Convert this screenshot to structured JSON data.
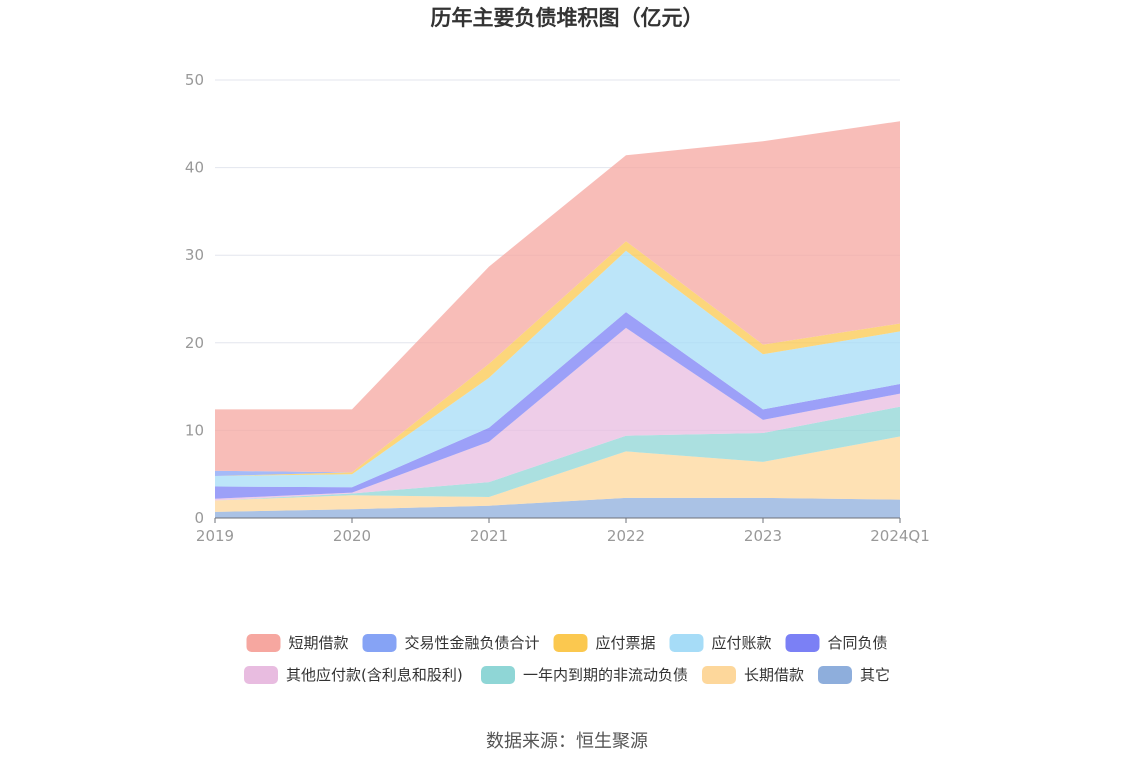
{
  "chart_data": {
    "type": "area",
    "stacked": true,
    "title": "历年主要负债堆积图（亿元）",
    "categories": [
      "2019",
      "2020",
      "2021",
      "2022",
      "2023",
      "2024Q1"
    ],
    "ylim": [
      0,
      50
    ],
    "yticks": [
      0,
      10,
      20,
      30,
      40,
      50
    ],
    "grid": true,
    "legend_position": "bottom",
    "series": [
      {
        "name": "其它",
        "color": "#8eaedc",
        "values": [
          0.7,
          1.0,
          1.4,
          2.3,
          2.3,
          2.1
        ]
      },
      {
        "name": "长期借款",
        "color": "#fdd79b",
        "values": [
          1.3,
          1.6,
          1.0,
          5.3,
          4.1,
          7.2
        ]
      },
      {
        "name": "一年内到期的非流动负债",
        "color": "#8fd6d6",
        "values": [
          0.0,
          0.2,
          1.7,
          1.8,
          3.3,
          3.4
        ]
      },
      {
        "name": "其他应付款(含利息和股利)",
        "color": "#e8bce0",
        "values": [
          0.2,
          0.1,
          4.6,
          12.3,
          1.5,
          1.5
        ]
      },
      {
        "name": "合同负债",
        "color": "#7b80f5",
        "values": [
          1.4,
          0.6,
          1.6,
          1.8,
          1.2,
          1.1
        ]
      },
      {
        "name": "应付账款",
        "color": "#a6dcf7",
        "values": [
          1.2,
          1.5,
          5.7,
          7.0,
          6.3,
          6.0
        ]
      },
      {
        "name": "应付票据",
        "color": "#fbc84f",
        "values": [
          0.0,
          0.2,
          1.6,
          1.1,
          1.1,
          0.9
        ]
      },
      {
        "name": "交易性金融负债合计",
        "color": "#86a3f5",
        "values": [
          0.6,
          0.0,
          0.0,
          0.0,
          0.0,
          0.0
        ]
      },
      {
        "name": "短期借款",
        "color": "#f6a7a0",
        "values": [
          7.0,
          7.2,
          11.1,
          9.8,
          23.2,
          23.1
        ]
      }
    ],
    "legend_order": [
      "短期借款",
      "交易性金融负债合计",
      "应付票据",
      "应付账款",
      "合同负债",
      "其他应付款(含利息和股利)",
      "一年内到期的非流动负债",
      "长期借款",
      "其它"
    ]
  },
  "source": "数据来源：恒生聚源"
}
